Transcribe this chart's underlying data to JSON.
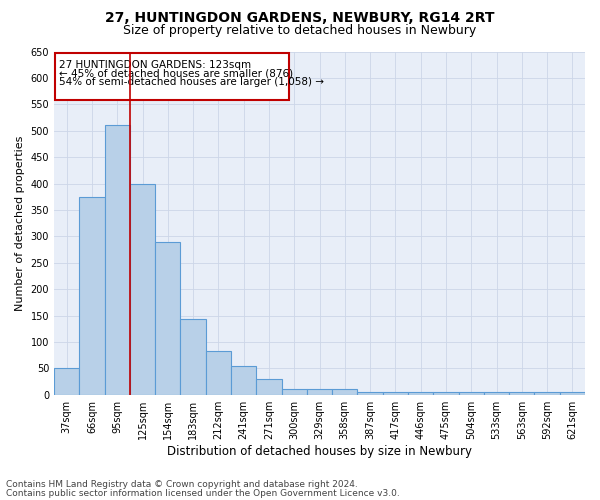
{
  "title1": "27, HUNTINGDON GARDENS, NEWBURY, RG14 2RT",
  "title2": "Size of property relative to detached houses in Newbury",
  "xlabel": "Distribution of detached houses by size in Newbury",
  "ylabel": "Number of detached properties",
  "categories": [
    "37sqm",
    "66sqm",
    "95sqm",
    "125sqm",
    "154sqm",
    "183sqm",
    "212sqm",
    "241sqm",
    "271sqm",
    "300sqm",
    "329sqm",
    "358sqm",
    "387sqm",
    "417sqm",
    "446sqm",
    "475sqm",
    "504sqm",
    "533sqm",
    "563sqm",
    "592sqm",
    "621sqm"
  ],
  "values": [
    50,
    375,
    510,
    400,
    290,
    143,
    83,
    55,
    30,
    11,
    11,
    11,
    5,
    5,
    5,
    5,
    5,
    5,
    5,
    5,
    5
  ],
  "bar_color": "#b8d0e8",
  "bar_edge_color": "#5b9bd5",
  "bar_linewidth": 0.8,
  "vline_color": "#c00000",
  "vline_linewidth": 1.2,
  "vline_pos": 2.5,
  "annotation_line1": "27 HUNTINGDON GARDENS: 123sqm",
  "annotation_line2": "← 45% of detached houses are smaller (876)",
  "annotation_line3": "54% of semi-detached houses are larger (1,058) →",
  "annotation_box_color": "#c00000",
  "ylim": [
    0,
    650
  ],
  "yticks": [
    0,
    50,
    100,
    150,
    200,
    250,
    300,
    350,
    400,
    450,
    500,
    550,
    600,
    650
  ],
  "grid_color": "#ccd6e8",
  "background_color": "#e8eef8",
  "footer1": "Contains HM Land Registry data © Crown copyright and database right 2024.",
  "footer2": "Contains public sector information licensed under the Open Government Licence v3.0.",
  "title1_fontsize": 10,
  "title2_fontsize": 9,
  "xlabel_fontsize": 8.5,
  "ylabel_fontsize": 8,
  "tick_fontsize": 7,
  "annotation_fontsize": 7.5,
  "footer_fontsize": 6.5
}
